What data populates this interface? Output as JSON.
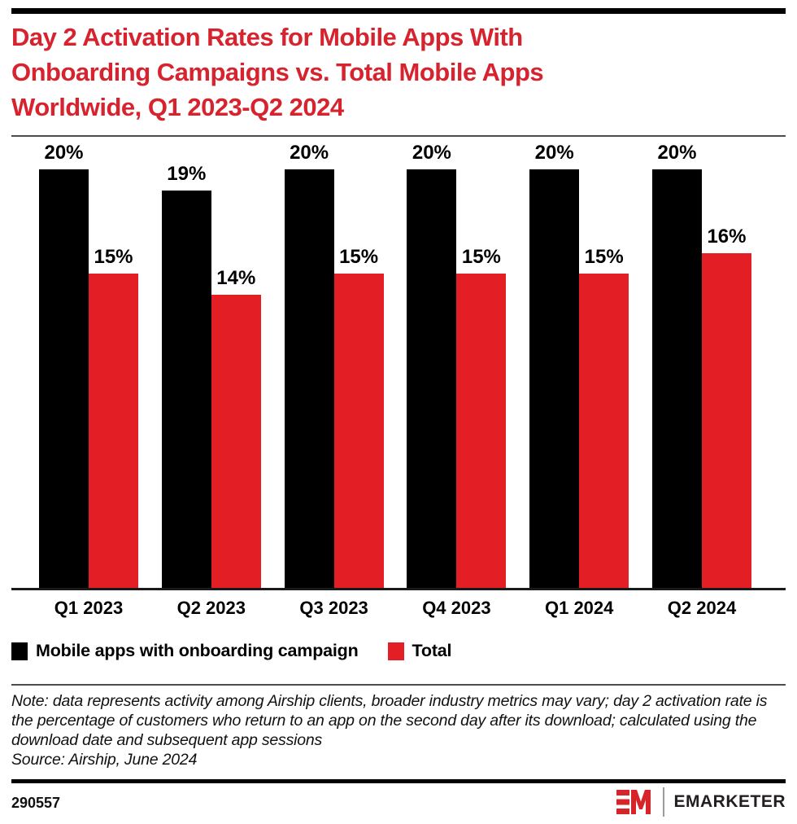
{
  "header": {
    "title_lines": [
      "Day 2 Activation Rates for Mobile Apps With",
      "Onboarding Campaigns vs. Total Mobile Apps",
      "Worldwide, Q1 2023-Q2 2024"
    ],
    "title_color": "#D7232E"
  },
  "chart_data": {
    "type": "bar",
    "title": "Day 2 Activation Rates for Mobile Apps With Onboarding Campaigns vs. Total Mobile Apps Worldwide, Q1 2023-Q2 2024",
    "categories": [
      "Q1 2023",
      "Q2 2023",
      "Q3 2023",
      "Q4 2023",
      "Q1 2024",
      "Q2 2024"
    ],
    "series": [
      {
        "name": "Mobile apps with onboarding campaign",
        "color": "#000000",
        "values": [
          20,
          19,
          20,
          20,
          20,
          20
        ]
      },
      {
        "name": "Total",
        "color": "#E31E25",
        "values": [
          15,
          14,
          15,
          15,
          15,
          16
        ]
      }
    ],
    "value_suffix": "%",
    "xlabel": "",
    "ylabel": "",
    "ylim": [
      0,
      21
    ],
    "grid": false,
    "data_labels": true,
    "legend_position": "bottom"
  },
  "legend": [
    {
      "label": "Mobile apps with onboarding campaign",
      "color": "#000000"
    },
    {
      "label": "Total",
      "color": "#E31E25"
    }
  ],
  "note": {
    "text": "Note: data represents activity among Airship clients, broader industry metrics may vary; day 2 activation rate is the percentage of customers who return to an app on the second day after its download; calculated using the download date and subsequent app sessions",
    "source": "Source: Airship, June 2024"
  },
  "footer": {
    "chart_id": "290557",
    "brand": "EMARKETER",
    "logo_color": "#D7232A"
  }
}
